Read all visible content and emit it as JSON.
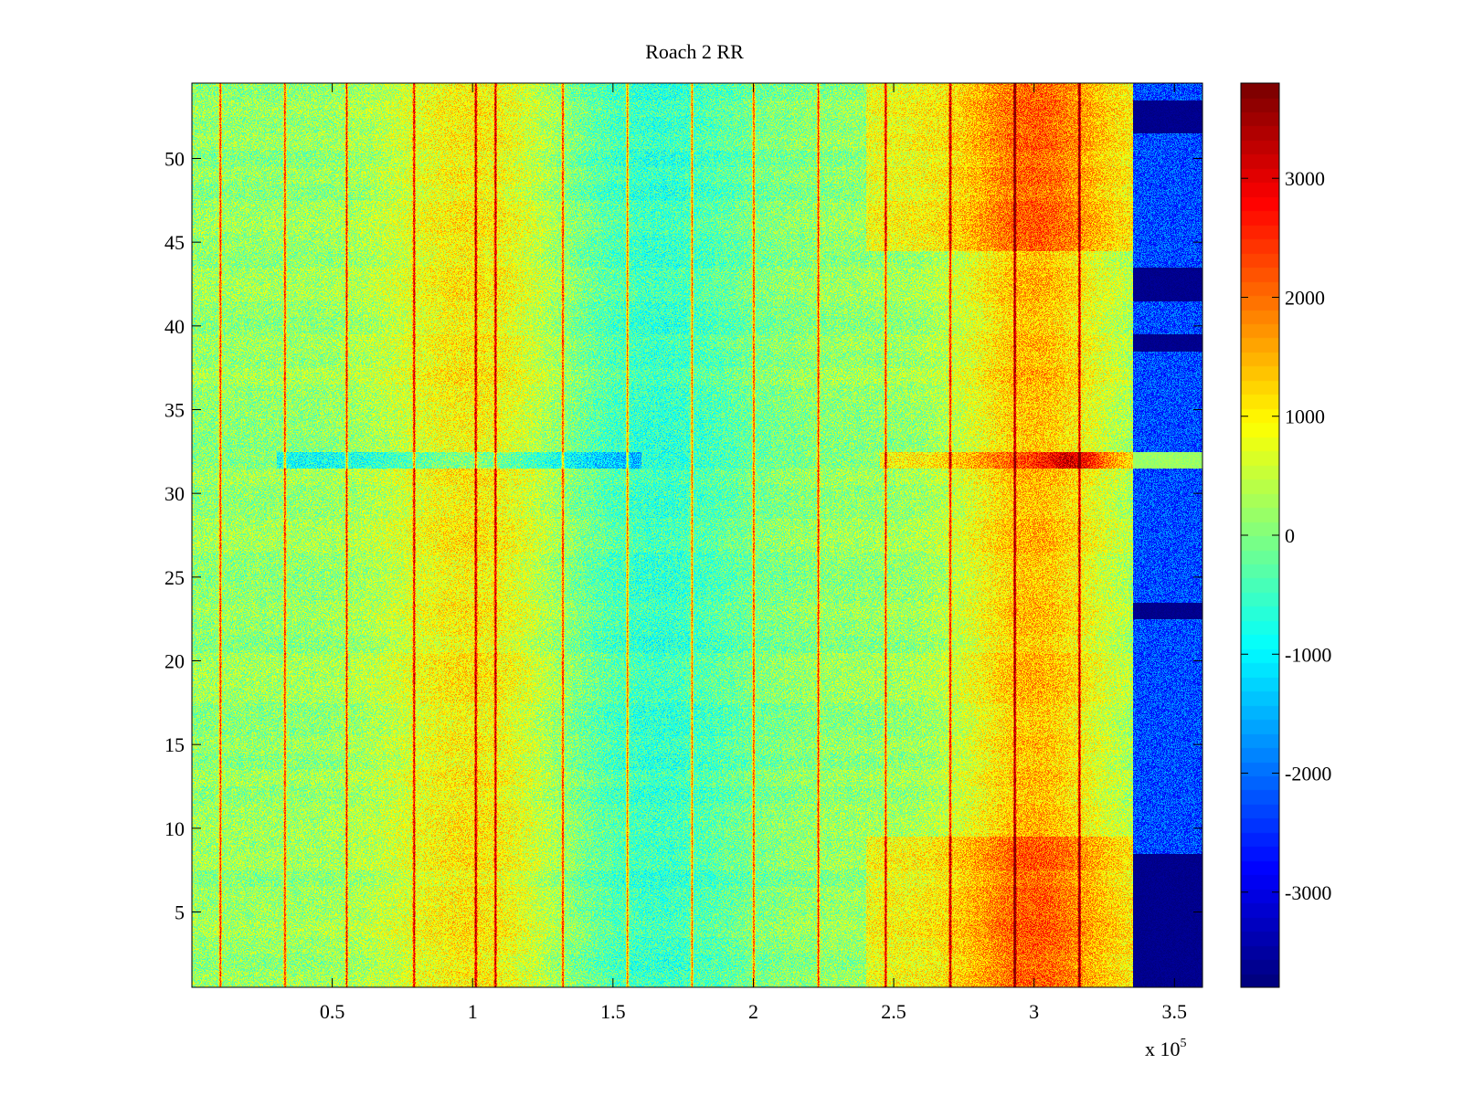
{
  "chart_data": {
    "type": "heatmap",
    "title": "Roach 2 RR",
    "xlabel": "",
    "ylabel": "",
    "x_range": [
      0,
      360000
    ],
    "y_range": [
      0.5,
      54.5
    ],
    "x_ticks": [
      {
        "value": 50000,
        "label": "0.5"
      },
      {
        "value": 100000,
        "label": "1"
      },
      {
        "value": 150000,
        "label": "1.5"
      },
      {
        "value": 200000,
        "label": "2"
      },
      {
        "value": 250000,
        "label": "2.5"
      },
      {
        "value": 300000,
        "label": "3"
      },
      {
        "value": 350000,
        "label": "3.5"
      }
    ],
    "x_multiplier": {
      "prefix": "x 10",
      "exponent": "5"
    },
    "y_ticks": [
      5,
      10,
      15,
      20,
      25,
      30,
      35,
      40,
      45,
      50
    ],
    "rows": 54,
    "colorbar": {
      "colormap": "jet",
      "range": [
        -3800,
        3800
      ],
      "ticks": [
        -3000,
        -2000,
        -1000,
        0,
        1000,
        2000,
        3000
      ]
    },
    "features": {
      "vertical_red_stripes_x": [
        10000,
        33000,
        55000,
        79000,
        101000,
        108000,
        132000,
        155000,
        178000,
        200000,
        223000,
        247000,
        270000,
        293000,
        316000
      ],
      "dark_blue_region_x_start": 335000,
      "saturated_rows": [
        1,
        2,
        3,
        4,
        5,
        6,
        7,
        8,
        23,
        39,
        42,
        43,
        52,
        53
      ],
      "warm_row": 32
    }
  }
}
